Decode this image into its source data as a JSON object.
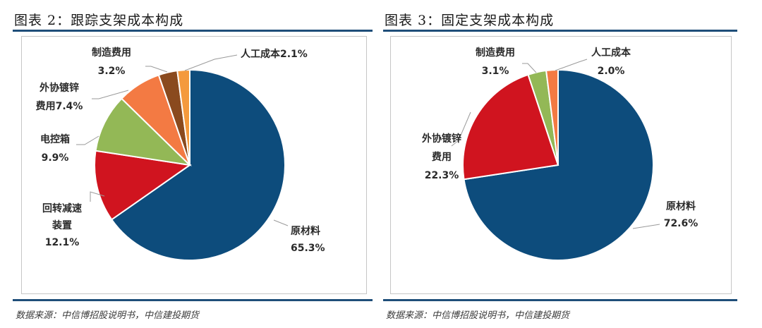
{
  "chart_data": [
    {
      "type": "pie",
      "title": "图表 2：跟踪支架成本构成",
      "source": "数据来源：中信博招股说明书，中信建投期货",
      "slices": [
        {
          "label_lines": [
            "原材料",
            "65.3%"
          ],
          "value": 65.3,
          "color": "#0d4c7c"
        },
        {
          "label_lines": [
            "回转减速",
            "装置",
            "12.1%"
          ],
          "value": 12.1,
          "color": "#d0141f"
        },
        {
          "label_lines": [
            "电控箱",
            "9.9%"
          ],
          "value": 9.9,
          "color": "#93b856"
        },
        {
          "label_lines": [
            "外协镀锌",
            "费用7.4%"
          ],
          "value": 7.4,
          "color": "#f37a43"
        },
        {
          "label_lines": [
            "制造费用",
            "3.2%"
          ],
          "value": 3.2,
          "color": "#8a4a1e"
        },
        {
          "label_lines": [
            "人工成本2.1%"
          ],
          "value": 2.1,
          "color": "#f49a3d"
        }
      ]
    },
    {
      "type": "pie",
      "title": "图表 3：固定支架成本构成",
      "source": "数据来源：中信博招股说明书，中信建投期货",
      "slices": [
        {
          "label_lines": [
            "原材料",
            "72.6%"
          ],
          "value": 72.6,
          "color": "#0d4c7c"
        },
        {
          "label_lines": [
            "外协镀锌",
            "费用",
            "22.3%"
          ],
          "value": 22.3,
          "color": "#d0141f"
        },
        {
          "label_lines": [
            "制造费用",
            "3.1%"
          ],
          "value": 3.1,
          "color": "#93b856"
        },
        {
          "label_lines": [
            "人工成本",
            "2.0%"
          ],
          "value": 2.0,
          "color": "#f37a43"
        }
      ]
    }
  ]
}
